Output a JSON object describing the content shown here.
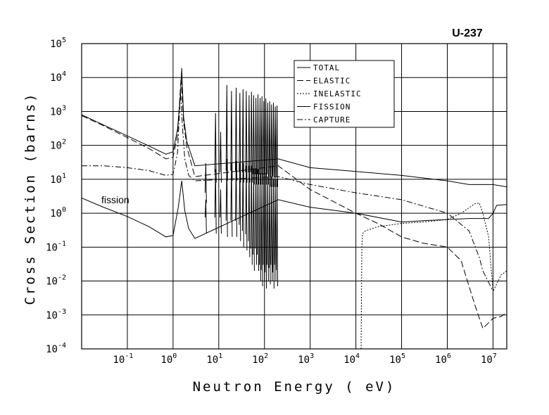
{
  "chart_data": {
    "type": "line",
    "title": "U-237",
    "xlabel": "Neutron Energy ( eV)",
    "ylabel": "Cross Section (barns)",
    "x_scale": "log",
    "y_scale": "log",
    "xlim": [
      0.01,
      20000000
    ],
    "ylim": [
      0.0001,
      100000
    ],
    "grid": true,
    "legend_position": "top-center-right",
    "x_ticks": [
      {
        "value": 0.1,
        "base": "10",
        "exp": "-1"
      },
      {
        "value": 1,
        "base": "10",
        "exp": "0"
      },
      {
        "value": 10,
        "base": "10",
        "exp": "1"
      },
      {
        "value": 100,
        "base": "10",
        "exp": "2"
      },
      {
        "value": 1000,
        "base": "10",
        "exp": "3"
      },
      {
        "value": 10000,
        "base": "10",
        "exp": "4"
      },
      {
        "value": 100000,
        "base": "10",
        "exp": "5"
      },
      {
        "value": 1000000,
        "base": "10",
        "exp": "6"
      },
      {
        "value": 10000000,
        "base": "10",
        "exp": "7"
      }
    ],
    "y_ticks": [
      {
        "value": 0.0001,
        "base": "10",
        "exp": "-4"
      },
      {
        "value": 0.001,
        "base": "10",
        "exp": "-3"
      },
      {
        "value": 0.01,
        "base": "10",
        "exp": "-2"
      },
      {
        "value": 0.1,
        "base": "10",
        "exp": "-1"
      },
      {
        "value": 1,
        "base": "10",
        "exp": "0"
      },
      {
        "value": 10,
        "base": "10",
        "exp": "1"
      },
      {
        "value": 100,
        "base": "10",
        "exp": "2"
      },
      {
        "value": 1000,
        "base": "10",
        "exp": "3"
      },
      {
        "value": 10000,
        "base": "10",
        "exp": "4"
      },
      {
        "value": 100000,
        "base": "10",
        "exp": "5"
      }
    ],
    "annotations": [
      {
        "text": "fission",
        "x": 0.02,
        "y": 2.0
      }
    ],
    "series": [
      {
        "name": "TOTAL",
        "dash": "solid",
        "x": [
          0.01,
          0.03,
          0.1,
          0.3,
          0.7,
          1.0,
          1.25,
          1.45,
          1.55,
          1.7,
          2.0,
          3.0,
          200,
          1000,
          10000,
          100000,
          1000000,
          3000000,
          10000000,
          20000000
        ],
        "y": [
          800,
          400,
          190,
          95,
          55,
          65,
          300,
          3000,
          19000,
          700,
          130,
          25,
          40,
          22,
          17,
          13,
          9,
          7,
          7,
          6
        ]
      },
      {
        "name": "ELASTIC",
        "dash": "long-dash",
        "x": [
          0.01,
          0.03,
          0.1,
          0.3,
          0.7,
          1.0,
          1.25,
          1.5,
          1.7,
          2.0,
          3.0,
          200,
          1000,
          10000,
          30000,
          100000,
          300000,
          1000000,
          2000000,
          4000000,
          6000000,
          10000000,
          15000000,
          20000000
        ],
        "y": [
          750,
          380,
          170,
          80,
          40,
          45,
          200,
          10000,
          500,
          90,
          12,
          25,
          5,
          1.0,
          0.5,
          0.2,
          0.13,
          0.1,
          0.04,
          0.002,
          0.0004,
          0.0008,
          0.0009,
          0.0012
        ]
      },
      {
        "name": "INELASTIC",
        "dash": "dotted",
        "x": [
          13000,
          13500,
          14000,
          16000,
          30000,
          100000,
          300000,
          1000000,
          2000000,
          4000000,
          5000000,
          6000000,
          8000000,
          10000000,
          15000000,
          20000000
        ],
        "y": [
          0.0001,
          0.1,
          0.25,
          0.3,
          0.4,
          0.5,
          0.55,
          0.65,
          1.0,
          1.9,
          2.0,
          1.0,
          0.2,
          0.005,
          0.015,
          0.02
        ]
      },
      {
        "name": "FISSION",
        "dash": "solid",
        "x": [
          0.01,
          0.03,
          0.1,
          0.3,
          0.7,
          1.0,
          1.3,
          1.55,
          1.8,
          2.2,
          3.0,
          200,
          1000,
          10000,
          100000,
          300000,
          1000000,
          3000000,
          8000000,
          10000000,
          12000000,
          20000000
        ],
        "y": [
          2.8,
          1.5,
          0.8,
          0.4,
          0.2,
          0.22,
          1.5,
          9,
          1.2,
          0.35,
          0.18,
          2.5,
          1.5,
          1.0,
          0.55,
          0.6,
          0.65,
          0.7,
          0.7,
          1.0,
          1.7,
          1.8
        ]
      },
      {
        "name": "CAPTURE",
        "dash": "dash-dot",
        "x": [
          0.01,
          0.03,
          0.1,
          0.3,
          0.7,
          1.0,
          1.25,
          1.45,
          1.6,
          1.8,
          2.2,
          3.0,
          200,
          1000,
          10000,
          100000,
          1000000,
          3000000,
          5000000,
          6000000,
          10000000
        ],
        "y": [
          25,
          25,
          22,
          18,
          13,
          14,
          60,
          4000,
          400,
          40,
          13,
          9,
          12,
          7,
          4,
          2.5,
          1.0,
          0.3,
          0.05,
          0.02,
          0.005
        ]
      }
    ],
    "resonance_region": {
      "x_min": 3,
      "x_max": 200,
      "peaks": [
        {
          "x": 5.2,
          "y_top": 30,
          "y_bottom": 2,
          "fission_top": 2.5,
          "fission_bottom": 0.25
        },
        {
          "x": 8.5,
          "y_top": 900,
          "y_bottom": 8,
          "fission_top": 20,
          "fission_bottom": 0.25
        },
        {
          "x": 11,
          "y_top": 250,
          "y_bottom": 8,
          "fission_top": 5,
          "fission_bottom": 0.25
        },
        {
          "x": 15,
          "y_top": 6000,
          "y_bottom": 9,
          "fission_top": 40,
          "fission_bottom": 0.2
        },
        {
          "x": 19,
          "y_top": 4000,
          "y_bottom": 9,
          "fission_top": 30,
          "fission_bottom": 0.2
        },
        {
          "x": 24,
          "y_top": 5000,
          "y_bottom": 9,
          "fission_top": 35,
          "fission_bottom": 0.2
        },
        {
          "x": 29,
          "y_top": 3500,
          "y_bottom": 8,
          "fission_top": 30,
          "fission_bottom": 0.15
        },
        {
          "x": 34,
          "y_top": 4500,
          "y_bottom": 8,
          "fission_top": 30,
          "fission_bottom": 0.1
        },
        {
          "x": 40,
          "y_top": 4000,
          "y_bottom": 8,
          "fission_top": 25,
          "fission_bottom": 0.08
        },
        {
          "x": 46,
          "y_top": 3000,
          "y_bottom": 8,
          "fission_top": 25,
          "fission_bottom": 0.05
        },
        {
          "x": 52,
          "y_top": 3800,
          "y_bottom": 8,
          "fission_top": 25,
          "fission_bottom": 0.03
        },
        {
          "x": 58,
          "y_top": 3000,
          "y_bottom": 7,
          "fission_top": 20,
          "fission_bottom": 0.02
        },
        {
          "x": 65,
          "y_top": 2500,
          "y_bottom": 7,
          "fission_top": 20,
          "fission_bottom": 0.03
        },
        {
          "x": 72,
          "y_top": 3200,
          "y_bottom": 7,
          "fission_top": 20,
          "fission_bottom": 0.02
        },
        {
          "x": 80,
          "y_top": 2500,
          "y_bottom": 7,
          "fission_top": 15,
          "fission_bottom": 0.01
        },
        {
          "x": 88,
          "y_top": 2800,
          "y_bottom": 7,
          "fission_top": 15,
          "fission_bottom": 0.007
        },
        {
          "x": 97,
          "y_top": 2000,
          "y_bottom": 7,
          "fission_top": 15,
          "fission_bottom": 0.01
        },
        {
          "x": 107,
          "y_top": 2400,
          "y_bottom": 7,
          "fission_top": 15,
          "fission_bottom": 0.006
        },
        {
          "x": 118,
          "y_top": 1800,
          "y_bottom": 7,
          "fission_top": 12,
          "fission_bottom": 0.01
        },
        {
          "x": 130,
          "y_top": 2000,
          "y_bottom": 6,
          "fission_top": 12,
          "fission_bottom": 0.008
        },
        {
          "x": 143,
          "y_top": 1600,
          "y_bottom": 6,
          "fission_top": 12,
          "fission_bottom": 0.01
        },
        {
          "x": 157,
          "y_top": 1800,
          "y_bottom": 6,
          "fission_top": 10,
          "fission_bottom": 0.006
        },
        {
          "x": 172,
          "y_top": 1400,
          "y_bottom": 6,
          "fission_top": 10,
          "fission_bottom": 0.01
        },
        {
          "x": 188,
          "y_top": 1500,
          "y_bottom": 6,
          "fission_top": 10,
          "fission_bottom": 0.007
        }
      ]
    }
  }
}
